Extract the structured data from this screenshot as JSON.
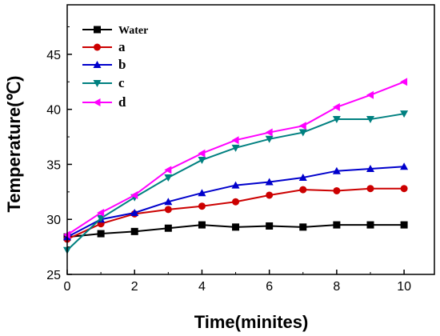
{
  "chart_data": {
    "type": "line",
    "xlabel": "Time(minites)",
    "ylabel": "Temperature(℃)",
    "xlim": [
      0,
      10.9
    ],
    "ylim": [
      25,
      49.5
    ],
    "xticks": [
      0,
      2,
      4,
      6,
      8,
      10
    ],
    "yticks": [
      25,
      30,
      35,
      40,
      45
    ],
    "x": [
      0,
      1,
      2,
      3,
      4,
      5,
      6,
      7,
      8,
      9,
      10
    ],
    "legend_position": "top-left",
    "series": [
      {
        "name": "Water",
        "color": "#000000",
        "marker": "square",
        "values": [
          28.4,
          28.7,
          28.9,
          29.2,
          29.5,
          29.3,
          29.4,
          29.3,
          29.5,
          29.5,
          29.5
        ]
      },
      {
        "name": "a",
        "color": "#cc0000",
        "marker": "circle",
        "values": [
          28.2,
          29.6,
          30.5,
          30.9,
          31.2,
          31.6,
          32.2,
          32.7,
          32.6,
          32.8,
          32.8
        ]
      },
      {
        "name": "b",
        "color": "#0000cc",
        "marker": "triangle-up",
        "values": [
          28.4,
          30.0,
          30.6,
          31.6,
          32.4,
          33.1,
          33.4,
          33.8,
          34.4,
          34.6,
          34.8
        ]
      },
      {
        "name": "c",
        "color": "#008080",
        "marker": "triangle-down",
        "values": [
          27.2,
          30.1,
          32.0,
          33.8,
          35.4,
          36.5,
          37.3,
          37.9,
          39.1,
          39.1,
          39.6
        ]
      },
      {
        "name": "d",
        "color": "#ff00ff",
        "marker": "triangle-left",
        "values": [
          28.6,
          30.6,
          32.2,
          34.5,
          36.0,
          37.2,
          37.9,
          38.5,
          40.2,
          41.3,
          42.5
        ]
      }
    ]
  }
}
